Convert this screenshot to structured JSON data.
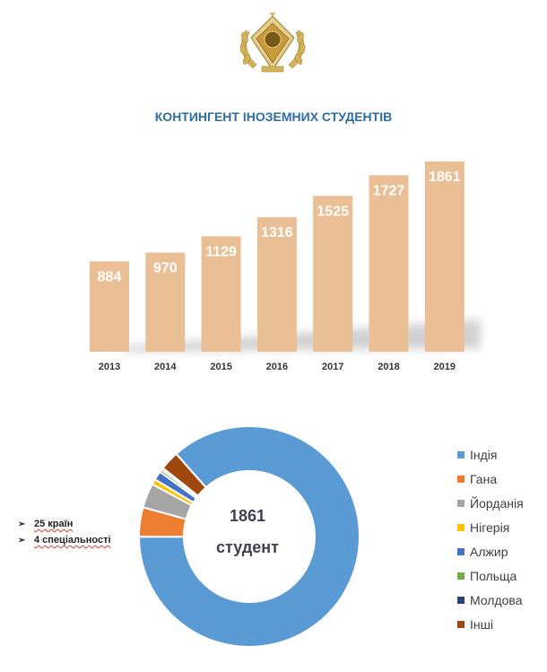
{
  "title": "КОНТИНГЕНТ ІНОЗЕМНИХ СТУДЕНТІВ",
  "colors": {
    "title": "#2e6da4",
    "bar": "#eabf96",
    "india": "#5b9bd5",
    "ghana": "#ed7d31",
    "jordan": "#a5a5a5",
    "nigeria": "#ffc000",
    "algeria": "#4472c4",
    "poland": "#70ad47",
    "moldova": "#264478",
    "other": "#9e480e"
  },
  "logo": {
    "icon": "university-emblem-icon"
  },
  "notes": [
    {
      "icon": "arrow-bullet-icon",
      "text": "25 країн"
    },
    {
      "icon": "arrow-bullet-icon",
      "text": "4 спеціальності"
    }
  ],
  "center": {
    "value": "1861",
    "unit": "студент"
  },
  "chart_data": [
    {
      "type": "bar",
      "title": "КОНТИНГЕНТ ІНОЗЕМНИХ СТУДЕНТІВ",
      "categories": [
        "2013",
        "2014",
        "2015",
        "2016",
        "2017",
        "2018",
        "2019"
      ],
      "values": [
        884,
        970,
        1129,
        1316,
        1525,
        1727,
        1861
      ],
      "data_labels": [
        "884",
        "970",
        "1129",
        "1316",
        "1525",
        "1727",
        "1861"
      ],
      "xlabel": "",
      "ylabel": "",
      "ylim": [
        0,
        1861
      ],
      "grid": false,
      "legend": "none"
    },
    {
      "type": "pie",
      "donut": true,
      "center_text": [
        "1861",
        "студент"
      ],
      "legend_placement": "right",
      "series": [
        {
          "label": "Індія",
          "value": 86.5,
          "color": "#5b9bd5"
        },
        {
          "label": "Гана",
          "value": 4.3,
          "color": "#ed7d31"
        },
        {
          "label": "Йорданія",
          "value": 3.6,
          "color": "#a5a5a5"
        },
        {
          "label": "Нігерія",
          "value": 0.8,
          "color": "#ffc000"
        },
        {
          "label": "Алжир",
          "value": 1.3,
          "color": "#4472c4"
        },
        {
          "label": "Польща",
          "value": 0.4,
          "color": "#70ad47"
        },
        {
          "label": "Молдова",
          "value": 0.3,
          "color": "#264478"
        },
        {
          "label": "Інші",
          "value": 2.8,
          "color": "#9e480e"
        }
      ]
    }
  ]
}
